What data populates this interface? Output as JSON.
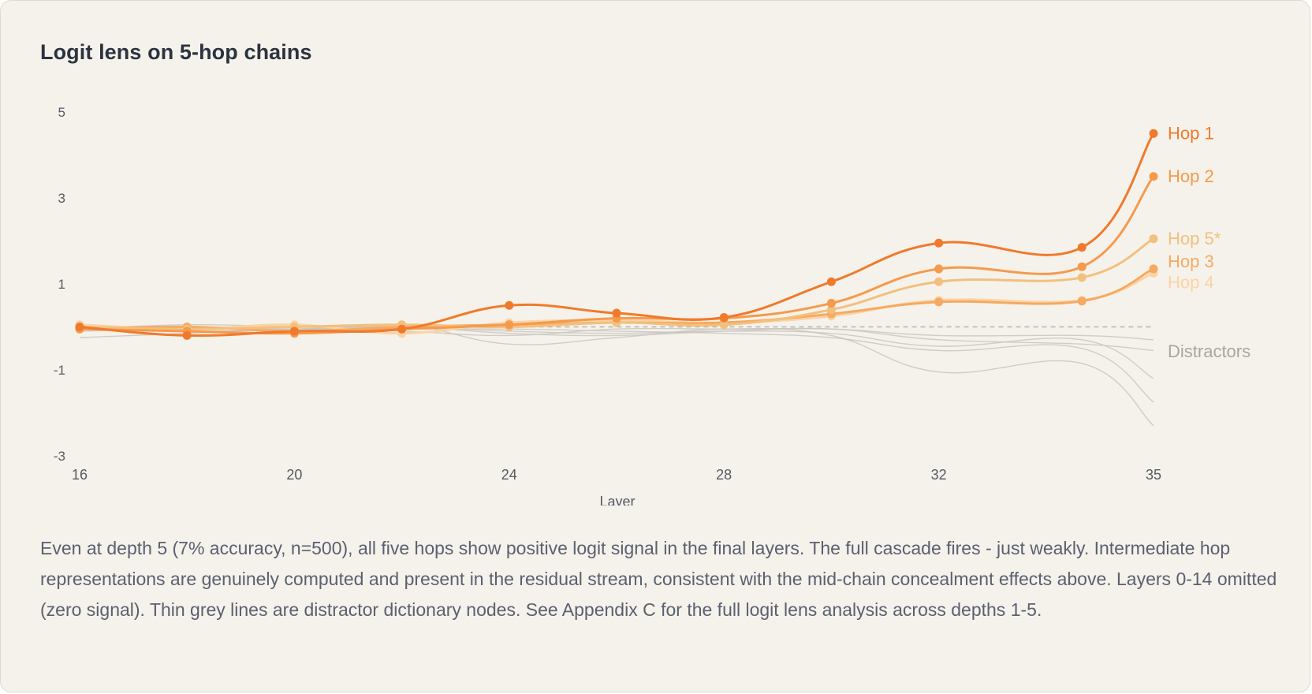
{
  "title": "Logit lens on 5-hop chains",
  "caption": "Even at depth 5 (7% accuracy, n=500), all five hops show positive logit signal in the final layers. The full cascade fires - just weakly. Intermediate hop representations are genuinely computed and present in the residual stream, consistent with the mid-chain concealment effects above. Layers 0-14 omitted (zero signal). Thin grey lines are distractor dictionary nodes. See Appendix C for the full logit lens analysis across depths 1-5.",
  "colors": {
    "hop1": "#f07a2c",
    "hop2": "#f59a4c",
    "hop3": "#f5aa62",
    "hop4": "#fbd3a6",
    "hop5": "#f2c07e",
    "distractor": "#c9c6c0",
    "axis_text": "#555a63",
    "zero_line": "#b8b4ad"
  },
  "chart_data": {
    "type": "line",
    "title": "Logit lens on 5-hop chains",
    "xlabel": "Layer",
    "ylabel": "",
    "x_ticks": [
      "16",
      "20",
      "24",
      "28",
      "32",
      "35"
    ],
    "y_ticks": [
      "5",
      "3",
      "1",
      "-1",
      "-3"
    ],
    "ylim": [
      -3,
      5
    ],
    "grid": false,
    "legend": "inline labels at right end of lines",
    "x": [
      16,
      18,
      20,
      22,
      24,
      26,
      28,
      30,
      32,
      34,
      35
    ],
    "series": [
      {
        "name": "Hop 1",
        "color_key": "hop1",
        "values": [
          0.0,
          -0.2,
          -0.1,
          -0.05,
          0.5,
          0.32,
          0.22,
          1.05,
          1.95,
          1.85,
          4.5
        ]
      },
      {
        "name": "Hop 2",
        "color_key": "hop2",
        "values": [
          -0.05,
          -0.1,
          -0.15,
          -0.05,
          0.05,
          0.2,
          0.2,
          0.55,
          1.35,
          1.4,
          3.5
        ]
      },
      {
        "name": "Hop 5*",
        "color_key": "hop5",
        "values": [
          0.0,
          -0.05,
          0.0,
          0.05,
          0.0,
          0.1,
          0.05,
          0.4,
          1.05,
          1.15,
          2.05
        ]
      },
      {
        "name": "Hop 3",
        "color_key": "hop3",
        "values": [
          -0.05,
          0.0,
          -0.1,
          0.0,
          0.05,
          0.1,
          0.1,
          0.3,
          0.58,
          0.6,
          1.35
        ]
      },
      {
        "name": "Hop 4",
        "color_key": "hop4",
        "values": [
          0.05,
          -0.05,
          0.05,
          -0.15,
          0.1,
          0.15,
          0.1,
          0.25,
          0.62,
          0.62,
          1.25
        ]
      }
    ],
    "distractors": {
      "name": "Distractors",
      "lines": [
        [
          -0.25,
          -0.15,
          -0.05,
          0.0,
          -0.15,
          -0.2,
          -0.1,
          -0.05,
          -0.3,
          -0.4,
          -0.55
        ],
        [
          0.0,
          0.0,
          -0.1,
          0.05,
          -0.4,
          -0.25,
          -0.05,
          -0.2,
          -1.05,
          -0.85,
          -2.3
        ],
        [
          -0.05,
          0.05,
          0.0,
          -0.05,
          -0.05,
          -0.1,
          -0.15,
          -0.25,
          -0.55,
          -0.5,
          -1.75
        ],
        [
          0.0,
          -0.1,
          -0.05,
          -0.1,
          -0.2,
          -0.05,
          -0.05,
          -0.05,
          -0.2,
          -0.2,
          -0.3
        ],
        [
          -0.1,
          -0.05,
          -0.05,
          0.0,
          -0.1,
          -0.15,
          -0.1,
          -0.15,
          -0.45,
          -0.3,
          -1.2
        ]
      ]
    }
  }
}
